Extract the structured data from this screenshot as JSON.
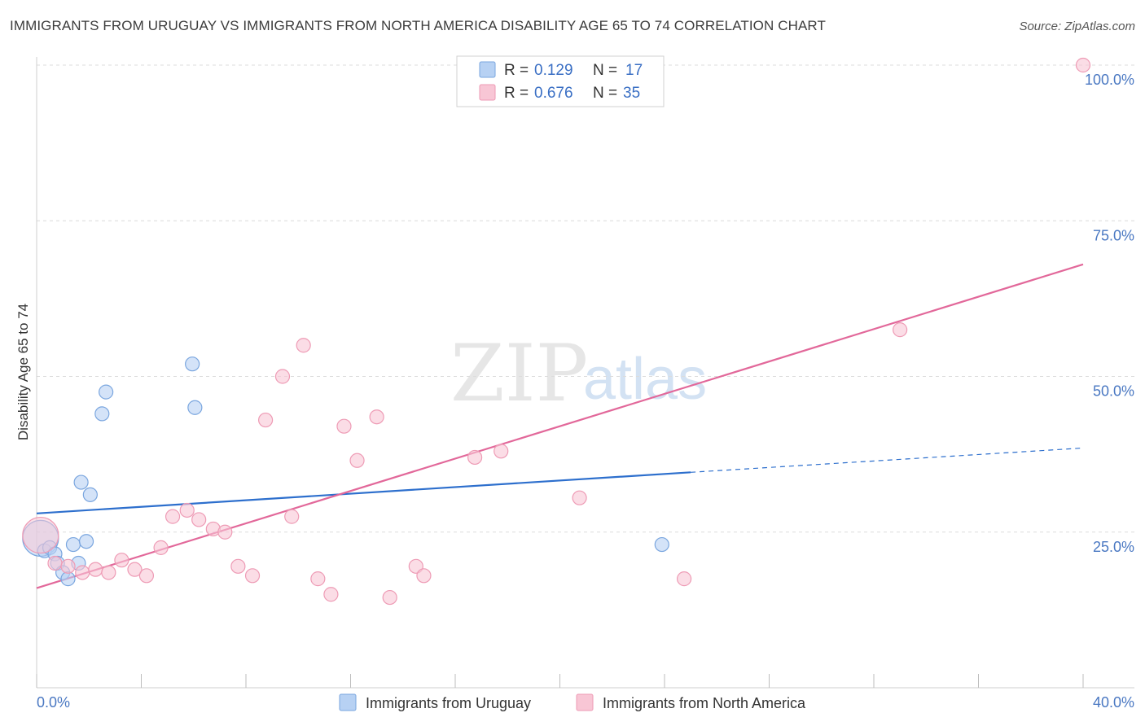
{
  "header": {
    "title": "IMMIGRANTS FROM URUGUAY VS IMMIGRANTS FROM NORTH AMERICA DISABILITY AGE 65 TO 74 CORRELATION CHART",
    "source": "Source: ZipAtlas.com"
  },
  "watermark": {
    "zip": "ZIP",
    "atlas": "atlas"
  },
  "legend": {
    "rows": [
      {
        "r_label": "R =",
        "r_value": "0.129",
        "n_label": "N =",
        "n_value": "17"
      },
      {
        "r_label": "R =",
        "r_value": "0.676",
        "n_label": "N =",
        "n_value": "35"
      }
    ]
  },
  "colors": {
    "uruguay_fill": "#b7d1f3",
    "uruguay_stroke": "#7aa6df",
    "uruguay_line": "#2d6fcd",
    "na_fill": "#f8c6d5",
    "na_stroke": "#ee9bb5",
    "na_line": "#e2689a",
    "grid": "#dcdcdc",
    "tick_text": "#4a78c2"
  },
  "chart_data": {
    "type": "scatter",
    "title": "IMMIGRANTS FROM URUGUAY VS IMMIGRANTS FROM NORTH AMERICA DISABILITY AGE 65 TO 74 CORRELATION CHART",
    "xlabel": "",
    "ylabel": "Disability Age 65 to 74",
    "xlim": [
      0,
      40
    ],
    "ylim": [
      0,
      102
    ],
    "x_tick_labels": [
      "0.0%",
      "40.0%"
    ],
    "y_ticks": [
      25,
      50,
      75,
      100
    ],
    "y_tick_labels": [
      "25.0%",
      "50.0%",
      "75.0%",
      "100.0%"
    ],
    "series": [
      {
        "name": "Immigrants from Uruguay",
        "points": [
          {
            "x": 0.15,
            "y": 24.0,
            "big": true
          },
          {
            "x": 0.3,
            "y": 22.0
          },
          {
            "x": 0.5,
            "y": 22.5
          },
          {
            "x": 0.7,
            "y": 21.5
          },
          {
            "x": 0.8,
            "y": 20.0
          },
          {
            "x": 1.0,
            "y": 18.5
          },
          {
            "x": 1.2,
            "y": 17.5
          },
          {
            "x": 1.4,
            "y": 23.0
          },
          {
            "x": 1.6,
            "y": 20.0
          },
          {
            "x": 1.7,
            "y": 33.0
          },
          {
            "x": 1.9,
            "y": 23.5
          },
          {
            "x": 2.05,
            "y": 31.0
          },
          {
            "x": 2.5,
            "y": 44.0
          },
          {
            "x": 2.65,
            "y": 47.5
          },
          {
            "x": 5.95,
            "y": 52.0
          },
          {
            "x": 6.05,
            "y": 45.0
          },
          {
            "x": 23.9,
            "y": 23.0
          }
        ],
        "trend": {
          "x1": 0,
          "y1": 28.0,
          "x2": 25.0,
          "y2": 34.6,
          "dash_x2": 40,
          "dash_y2": 38.5
        }
      },
      {
        "name": "Immigrants from North America",
        "points": [
          {
            "x": 0.15,
            "y": 24.5,
            "big": true
          },
          {
            "x": 0.7,
            "y": 20.0
          },
          {
            "x": 1.2,
            "y": 19.5
          },
          {
            "x": 1.75,
            "y": 18.5
          },
          {
            "x": 2.25,
            "y": 19.0
          },
          {
            "x": 2.75,
            "y": 18.5
          },
          {
            "x": 3.25,
            "y": 20.5
          },
          {
            "x": 3.75,
            "y": 19.0
          },
          {
            "x": 4.2,
            "y": 18.0
          },
          {
            "x": 4.75,
            "y": 22.5
          },
          {
            "x": 5.2,
            "y": 27.5
          },
          {
            "x": 5.75,
            "y": 28.5
          },
          {
            "x": 6.2,
            "y": 27.0
          },
          {
            "x": 6.75,
            "y": 25.5
          },
          {
            "x": 7.2,
            "y": 25.0
          },
          {
            "x": 7.7,
            "y": 19.5
          },
          {
            "x": 8.25,
            "y": 18.0
          },
          {
            "x": 8.75,
            "y": 43.0
          },
          {
            "x": 9.4,
            "y": 50.0
          },
          {
            "x": 9.75,
            "y": 27.5
          },
          {
            "x": 10.2,
            "y": 55.0
          },
          {
            "x": 10.75,
            "y": 17.5
          },
          {
            "x": 11.25,
            "y": 15.0
          },
          {
            "x": 11.75,
            "y": 42.0
          },
          {
            "x": 12.25,
            "y": 36.5
          },
          {
            "x": 13.0,
            "y": 43.5
          },
          {
            "x": 13.5,
            "y": 14.5
          },
          {
            "x": 14.5,
            "y": 19.5
          },
          {
            "x": 14.8,
            "y": 18.0
          },
          {
            "x": 16.75,
            "y": 37.0
          },
          {
            "x": 17.75,
            "y": 38.0
          },
          {
            "x": 20.75,
            "y": 30.5
          },
          {
            "x": 24.75,
            "y": 17.5
          },
          {
            "x": 33.0,
            "y": 57.5
          },
          {
            "x": 40.0,
            "y": 100.0
          }
        ],
        "trend": {
          "x1": 0,
          "y1": 16.0,
          "x2": 40,
          "y2": 68.0
        }
      }
    ]
  },
  "bottom_legend": {
    "items": [
      {
        "label": "Immigrants from Uruguay"
      },
      {
        "label": "Immigrants from North America"
      }
    ]
  }
}
